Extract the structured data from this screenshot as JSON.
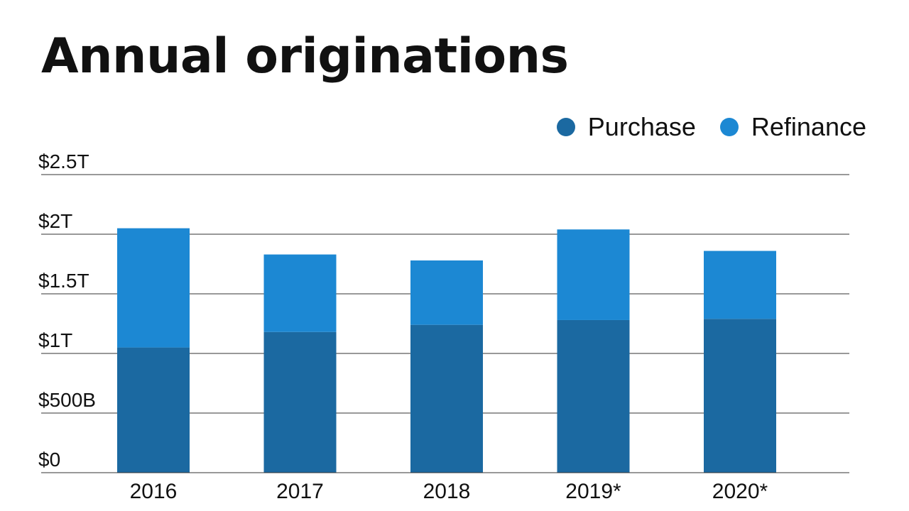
{
  "title": "Annual originations",
  "legend": {
    "position": "top-right",
    "items": [
      {
        "label": "Purchase",
        "color": "#1b69a1"
      },
      {
        "label": "Refinance",
        "color": "#1c88d3"
      }
    ]
  },
  "chart_data": {
    "type": "bar",
    "stacked": true,
    "title": "Annual originations",
    "xlabel": "",
    "ylabel": "",
    "categories": [
      "2016",
      "2017",
      "2018",
      "2019*",
      "2020*"
    ],
    "series": [
      {
        "name": "Purchase",
        "color": "#1b69a1",
        "values": [
          1.05,
          1.18,
          1.24,
          1.28,
          1.29
        ]
      },
      {
        "name": "Refinance",
        "color": "#1c88d3",
        "values": [
          1.0,
          0.65,
          0.54,
          0.76,
          0.57
        ]
      }
    ],
    "ylim": [
      0,
      2.5
    ],
    "y_ticks": [
      {
        "value": 0,
        "label": "$0"
      },
      {
        "value": 0.5,
        "label": "$500B"
      },
      {
        "value": 1.0,
        "label": "$1T"
      },
      {
        "value": 1.5,
        "label": "$1.5T"
      },
      {
        "value": 2.0,
        "label": "$2T"
      },
      {
        "value": 2.5,
        "label": "$2.5T"
      }
    ],
    "grid": true,
    "units": "trillions of dollars"
  }
}
